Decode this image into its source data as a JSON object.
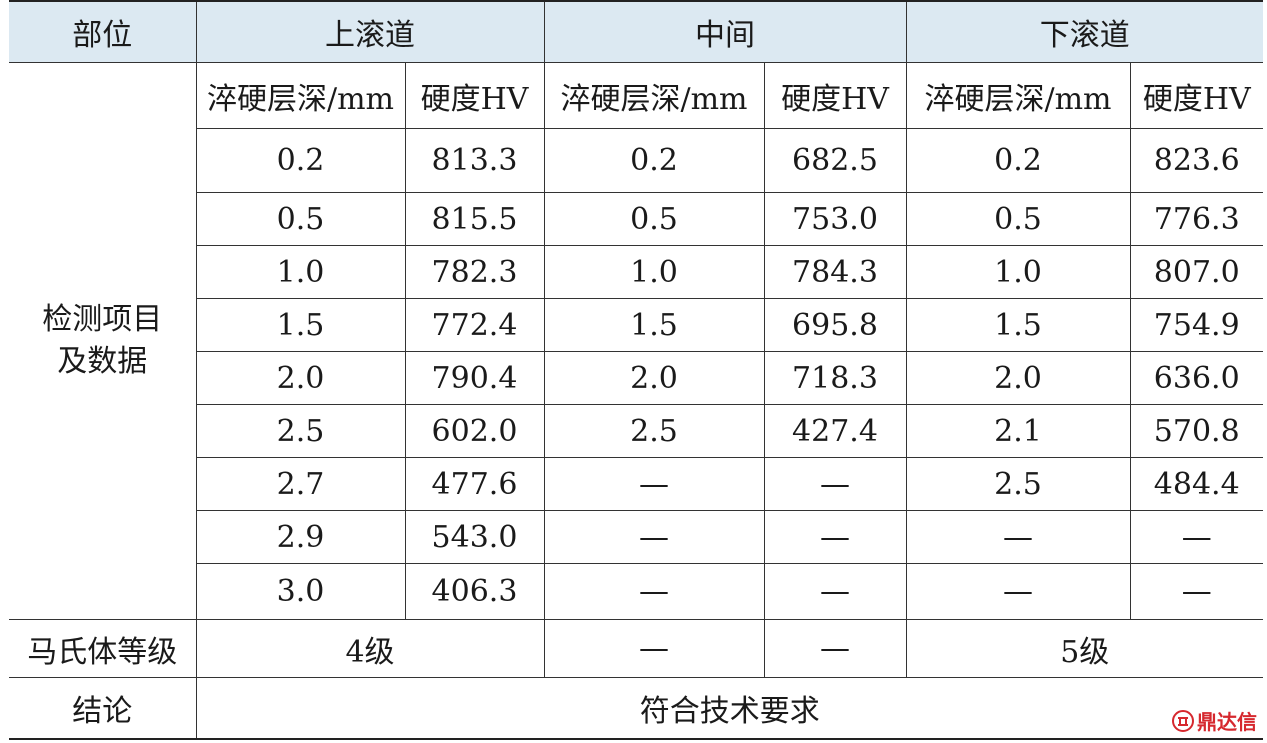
{
  "headers": {
    "position": "部位",
    "upper": "上滚道",
    "middle": "中间",
    "lower": "下滚道",
    "depth": "淬硬层深/mm",
    "hardness": "硬度HV"
  },
  "row_label": "检测项目\n及数据",
  "rows": [
    [
      "0.2",
      "813.3",
      "0.2",
      "682.5",
      "0.2",
      "823.6"
    ],
    [
      "0.5",
      "815.5",
      "0.5",
      "753.0",
      "0.5",
      "776.3"
    ],
    [
      "1.0",
      "782.3",
      "1.0",
      "784.3",
      "1.0",
      "807.0"
    ],
    [
      "1.5",
      "772.4",
      "1.5",
      "695.8",
      "1.5",
      "754.9"
    ],
    [
      "2.0",
      "790.4",
      "2.0",
      "718.3",
      "2.0",
      "636.0"
    ],
    [
      "2.5",
      "602.0",
      "2.5",
      "427.4",
      "2.1",
      "570.8"
    ],
    [
      "2.7",
      "477.6",
      "—",
      "—",
      "2.5",
      "484.4"
    ],
    [
      "2.9",
      "543.0",
      "—",
      "—",
      "—",
      "—"
    ],
    [
      "3.0",
      "406.3",
      "—",
      "—",
      "—",
      "—"
    ]
  ],
  "martensite": {
    "label": "马氏体等级",
    "upper": "4级",
    "middle_depth": "—",
    "middle_hardness": "—",
    "lower": "5级"
  },
  "conclusion": {
    "label": "结论",
    "value": "符合技术要求"
  },
  "watermark": {
    "text": "鼎达信",
    "color": "#d6282e",
    "icon": "brand-logo-icon"
  }
}
